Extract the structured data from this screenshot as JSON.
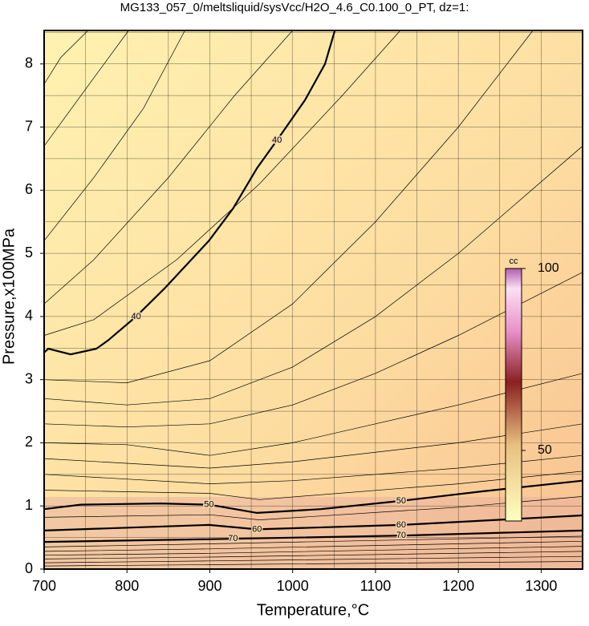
{
  "chart_data": {
    "type": "contour",
    "title": "MG133_057_0/meltsliquid/sysVcc/H2O_4.6_C0.100_0_PT, dz=1:",
    "x_label": "Temperature,°C",
    "y_label": "Pressure,x100MPa",
    "xlim": [
      700,
      1350
    ],
    "ylim": [
      0,
      8.53
    ],
    "xticks": [
      700,
      800,
      900,
      1000,
      1100,
      1200,
      1300
    ],
    "yticks": [
      0,
      1,
      2,
      3,
      4,
      5,
      6,
      7,
      8
    ],
    "xgrid": [
      750,
      850,
      950,
      1050,
      1150,
      1250,
      1350
    ],
    "ygrid": [
      0.5,
      1.5,
      2.5,
      3.5,
      4.5,
      5.5,
      6.5,
      7.5,
      8.5
    ],
    "series": [
      {
        "name": "40",
        "color": "#000000",
        "x": [
          700,
          705,
          732,
          763,
          777,
          811,
          845,
          899,
          928,
          957,
          981,
          1015,
          1039,
          1051
        ],
        "values": [
          3.43,
          3.49,
          3.4,
          3.49,
          3.62,
          4.0,
          4.44,
          5.2,
          5.71,
          6.35,
          6.79,
          7.43,
          8.0,
          8.53
        ]
      },
      {
        "name": "50",
        "color": "#000000",
        "x": [
          700,
          744,
          840,
          899,
          957,
          1034,
          1131,
          1228,
          1350
        ],
        "values": [
          0.95,
          1.02,
          1.04,
          1.02,
          0.89,
          0.95,
          1.08,
          1.23,
          1.4
        ]
      },
      {
        "name": "60",
        "color": "#000000",
        "x": [
          700,
          899,
          957,
          1131,
          1350
        ],
        "values": [
          0.61,
          0.7,
          0.63,
          0.7,
          0.85
        ]
      },
      {
        "name": "70",
        "color": "#000000",
        "x": [
          700,
          928,
          1131,
          1350
        ],
        "values": [
          0.43,
          0.48,
          0.53,
          0.61
        ]
      }
    ],
    "thin_lines": [
      {
        "x": [
          700,
          720,
          753
        ],
        "values": [
          7.68,
          8.1,
          8.53
        ]
      },
      {
        "x": [
          700,
          750,
          802
        ],
        "values": [
          6.7,
          7.6,
          8.53
        ]
      },
      {
        "x": [
          700,
          760,
          820,
          870
        ],
        "values": [
          5.2,
          6.2,
          7.3,
          8.53
        ]
      },
      {
        "x": [
          700,
          760,
          850,
          930,
          1000
        ],
        "values": [
          4.2,
          4.9,
          6.2,
          7.5,
          8.53
        ]
      },
      {
        "x": [
          700,
          760,
          860,
          960,
          1060,
          1130
        ],
        "values": [
          3.7,
          3.95,
          4.9,
          6.1,
          7.5,
          8.53
        ]
      },
      {
        "x": [
          700,
          800,
          900,
          1000,
          1100,
          1200,
          1290
        ],
        "values": [
          3.0,
          2.95,
          3.3,
          4.2,
          5.5,
          7.0,
          8.53
        ]
      },
      {
        "x": [
          700,
          800,
          900,
          1000,
          1100,
          1200,
          1350
        ],
        "values": [
          2.7,
          2.6,
          2.7,
          3.2,
          4.0,
          5.0,
          6.7
        ]
      },
      {
        "x": [
          700,
          800,
          900,
          1000,
          1100,
          1200,
          1350
        ],
        "values": [
          2.3,
          2.25,
          2.3,
          2.6,
          3.1,
          3.7,
          4.7
        ]
      },
      {
        "x": [
          700,
          800,
          900,
          1000,
          1100,
          1200,
          1350
        ],
        "values": [
          2.0,
          1.97,
          1.8,
          2.0,
          2.3,
          2.6,
          3.1
        ]
      },
      {
        "x": [
          700,
          900,
          1000,
          1200,
          1350
        ],
        "values": [
          1.75,
          1.6,
          1.7,
          2.0,
          2.3
        ]
      },
      {
        "x": [
          700,
          900,
          1000,
          1200,
          1350
        ],
        "values": [
          1.5,
          1.35,
          1.4,
          1.6,
          1.8
        ]
      },
      {
        "x": [
          700,
          900,
          960,
          1200,
          1350
        ],
        "values": [
          1.25,
          1.2,
          1.1,
          1.35,
          1.55
        ]
      },
      {
        "x": [
          700,
          900,
          960,
          1200,
          1350
        ],
        "values": [
          0.82,
          0.86,
          0.78,
          0.98,
          1.15
        ]
      },
      {
        "x": [
          700,
          900,
          1350
        ],
        "values": [
          0.35,
          0.4,
          0.52
        ]
      },
      {
        "x": [
          700,
          900,
          1350
        ],
        "values": [
          0.28,
          0.32,
          0.44
        ]
      },
      {
        "x": [
          700,
          900,
          1350
        ],
        "values": [
          0.22,
          0.25,
          0.36
        ]
      },
      {
        "x": [
          700,
          900,
          1350
        ],
        "values": [
          0.16,
          0.19,
          0.28
        ]
      },
      {
        "x": [
          700,
          900,
          1350
        ],
        "values": [
          0.1,
          0.13,
          0.2
        ]
      },
      {
        "x": [
          700,
          900,
          1350
        ],
        "values": [
          0.05,
          0.07,
          0.12
        ]
      }
    ],
    "colorbar": {
      "title": "cc",
      "lim": [
        30.6,
        100
      ],
      "ticks": [
        100,
        50
      ]
    }
  }
}
